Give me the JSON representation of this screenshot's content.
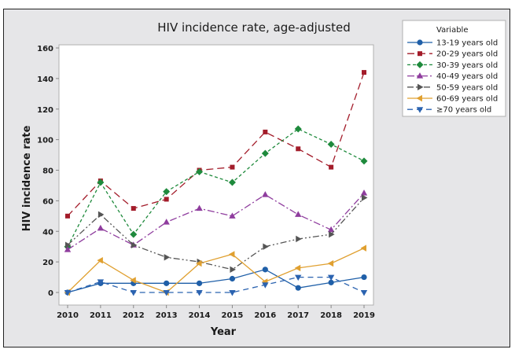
{
  "chart_data": {
    "type": "line",
    "title": "HIV incidence rate, age-adjusted",
    "xlabel": "Year",
    "ylabel": "HIV incidence rate",
    "x": [
      2010,
      2011,
      2012,
      2013,
      2014,
      2015,
      2016,
      2017,
      2018,
      2019
    ],
    "x_tick_labels": [
      "2010",
      "2011",
      "2012",
      "2013",
      "2014",
      "2015",
      "2016",
      "2017",
      "2018",
      "2019"
    ],
    "ylim": [
      -8,
      160
    ],
    "y_ticks": [
      0,
      20,
      40,
      60,
      80,
      100,
      120,
      140,
      160
    ],
    "y_tick_labels": [
      "0",
      "20",
      "40",
      "60",
      "80",
      "100",
      "120",
      "140",
      "160"
    ],
    "grid": false,
    "legend": {
      "title": "Variable",
      "placement": "right"
    },
    "series": [
      {
        "name": "13-19 years old",
        "color": "#1f5fa8",
        "dash": "solid",
        "marker": "circle",
        "values": [
          0,
          6,
          6,
          6,
          6,
          9,
          15,
          3,
          6.5,
          10
        ]
      },
      {
        "name": "20-29 years old",
        "color": "#a31c2a",
        "dash": "longdash",
        "marker": "square",
        "values": [
          50,
          73,
          55,
          61,
          80,
          82,
          105,
          94,
          82,
          144
        ]
      },
      {
        "name": "30-39 years old",
        "color": "#1e8a3c",
        "dash": "shortdash",
        "marker": "diamond",
        "values": [
          30,
          72,
          38,
          66,
          79,
          72,
          91,
          107,
          97,
          86
        ]
      },
      {
        "name": "40-49 years old",
        "color": "#8f3d9e",
        "dash": "dashdot",
        "marker": "triangle-up",
        "values": [
          28,
          42,
          31,
          46,
          55,
          50,
          64,
          51,
          41,
          65
        ]
      },
      {
        "name": "50-59 years old",
        "color": "#555555",
        "dash": "dashdotdot",
        "marker": "triangle-right",
        "values": [
          31,
          51,
          31,
          23,
          20,
          15,
          30,
          35,
          38,
          62
        ]
      },
      {
        "name": "60-69 years old",
        "color": "#e0a030",
        "dash": "solid",
        "marker": "triangle-left",
        "values": [
          0,
          21,
          8,
          0,
          19,
          25,
          7,
          16,
          19,
          29
        ]
      },
      {
        "name": "≥70 years old",
        "color": "#2b63b0",
        "dash": "mediumdash",
        "marker": "triangle-down",
        "values": [
          0,
          7,
          0,
          0,
          0,
          0,
          5,
          10,
          10,
          0
        ]
      }
    ]
  }
}
